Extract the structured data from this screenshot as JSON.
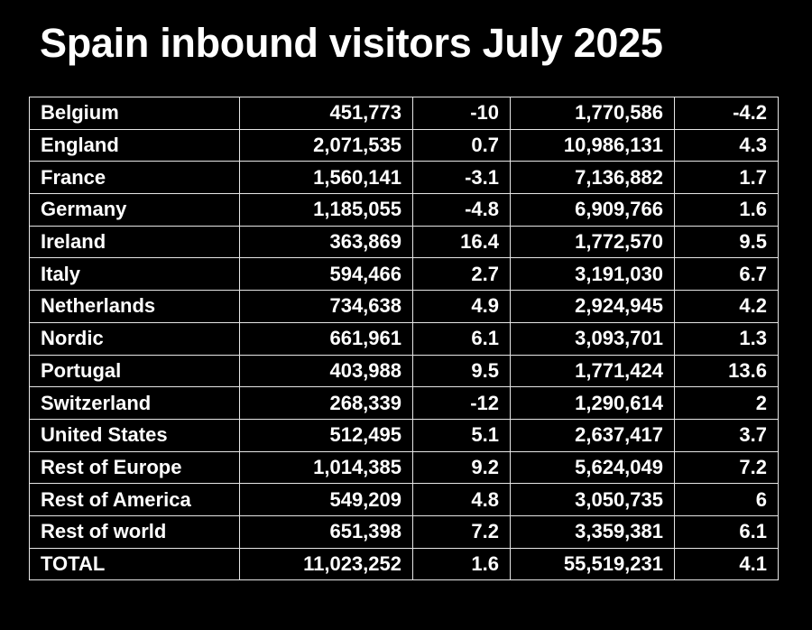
{
  "title": "Spain inbound visitors July 2025",
  "rows": [
    {
      "country": "Belgium",
      "july_visitors": "451,773",
      "july_change": "-10",
      "ytd_visitors": "1,770,586",
      "ytd_change": "-4.2"
    },
    {
      "country": "England",
      "july_visitors": "2,071,535",
      "july_change": "0.7",
      "ytd_visitors": "10,986,131",
      "ytd_change": "4.3"
    },
    {
      "country": "France",
      "july_visitors": "1,560,141",
      "july_change": "-3.1",
      "ytd_visitors": "7,136,882",
      "ytd_change": "1.7"
    },
    {
      "country": "Germany",
      "july_visitors": "1,185,055",
      "july_change": "-4.8",
      "ytd_visitors": "6,909,766",
      "ytd_change": "1.6"
    },
    {
      "country": "Ireland",
      "july_visitors": "363,869",
      "july_change": "16.4",
      "ytd_visitors": "1,772,570",
      "ytd_change": "9.5"
    },
    {
      "country": "Italy",
      "july_visitors": "594,466",
      "july_change": "2.7",
      "ytd_visitors": "3,191,030",
      "ytd_change": "6.7"
    },
    {
      "country": "Netherlands",
      "july_visitors": "734,638",
      "july_change": "4.9",
      "ytd_visitors": "2,924,945",
      "ytd_change": "4.2"
    },
    {
      "country": "Nordic",
      "july_visitors": "661,961",
      "july_change": "6.1",
      "ytd_visitors": "3,093,701",
      "ytd_change": "1.3"
    },
    {
      "country": "Portugal",
      "july_visitors": "403,988",
      "july_change": "9.5",
      "ytd_visitors": "1,771,424",
      "ytd_change": "13.6"
    },
    {
      "country": "Switzerland",
      "july_visitors": "268,339",
      "july_change": "-12",
      "ytd_visitors": "1,290,614",
      "ytd_change": "2"
    },
    {
      "country": "United States",
      "july_visitors": "512,495",
      "july_change": "5.1",
      "ytd_visitors": "2,637,417",
      "ytd_change": "3.7"
    },
    {
      "country": "Rest of Europe",
      "july_visitors": "1,014,385",
      "july_change": "9.2",
      "ytd_visitors": "5,624,049",
      "ytd_change": "7.2"
    },
    {
      "country": "Rest of America",
      "july_visitors": "549,209",
      "july_change": "4.8",
      "ytd_visitors": "3,050,735",
      "ytd_change": "6"
    },
    {
      "country": "Rest of world",
      "july_visitors": "651,398",
      "july_change": "7.2",
      "ytd_visitors": "3,359,381",
      "ytd_change": "6.1"
    },
    {
      "country": "TOTAL",
      "july_visitors": "11,023,252",
      "july_change": "1.6",
      "ytd_visitors": "55,519,231",
      "ytd_change": "4.1"
    }
  ]
}
